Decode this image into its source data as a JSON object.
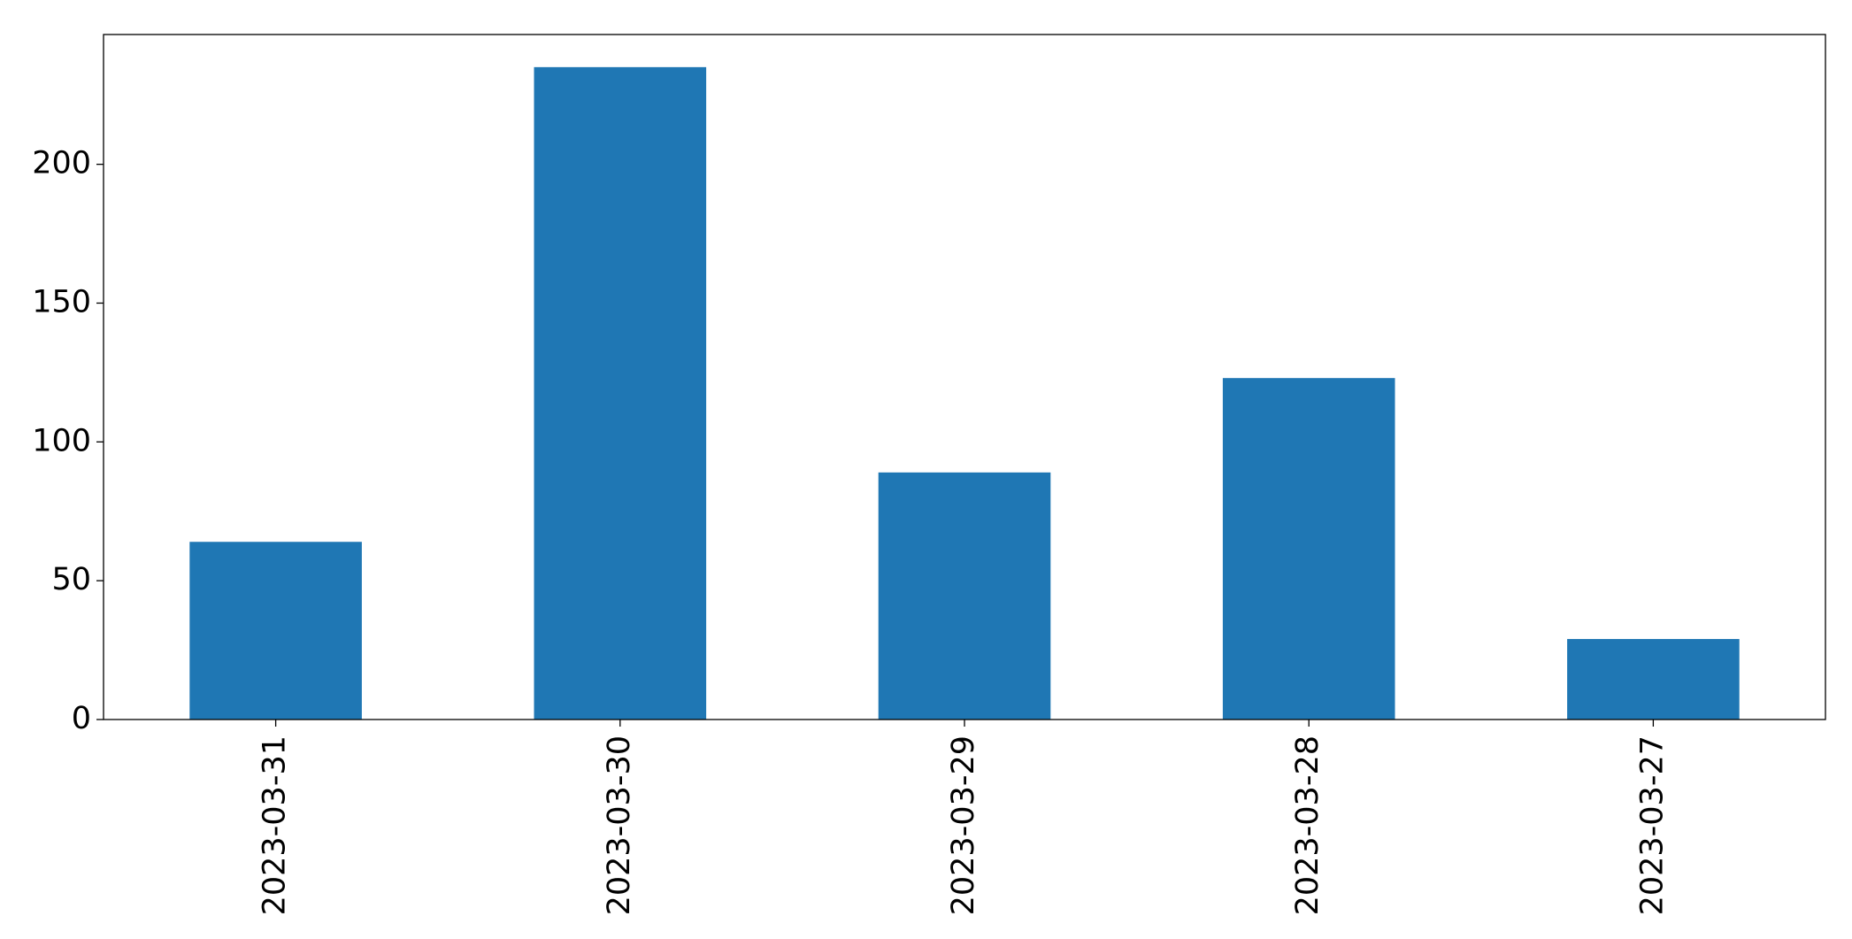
{
  "chart_data": {
    "type": "bar",
    "categories": [
      "2023-03-31",
      "2023-03-30",
      "2023-03-29",
      "2023-03-28",
      "2023-03-27"
    ],
    "values": [
      64,
      235,
      89,
      123,
      29
    ],
    "color": "#1f77b4",
    "ylim": [
      0,
      246.75
    ],
    "yticks": [
      0,
      50,
      100,
      150,
      200
    ],
    "grid": false
  }
}
